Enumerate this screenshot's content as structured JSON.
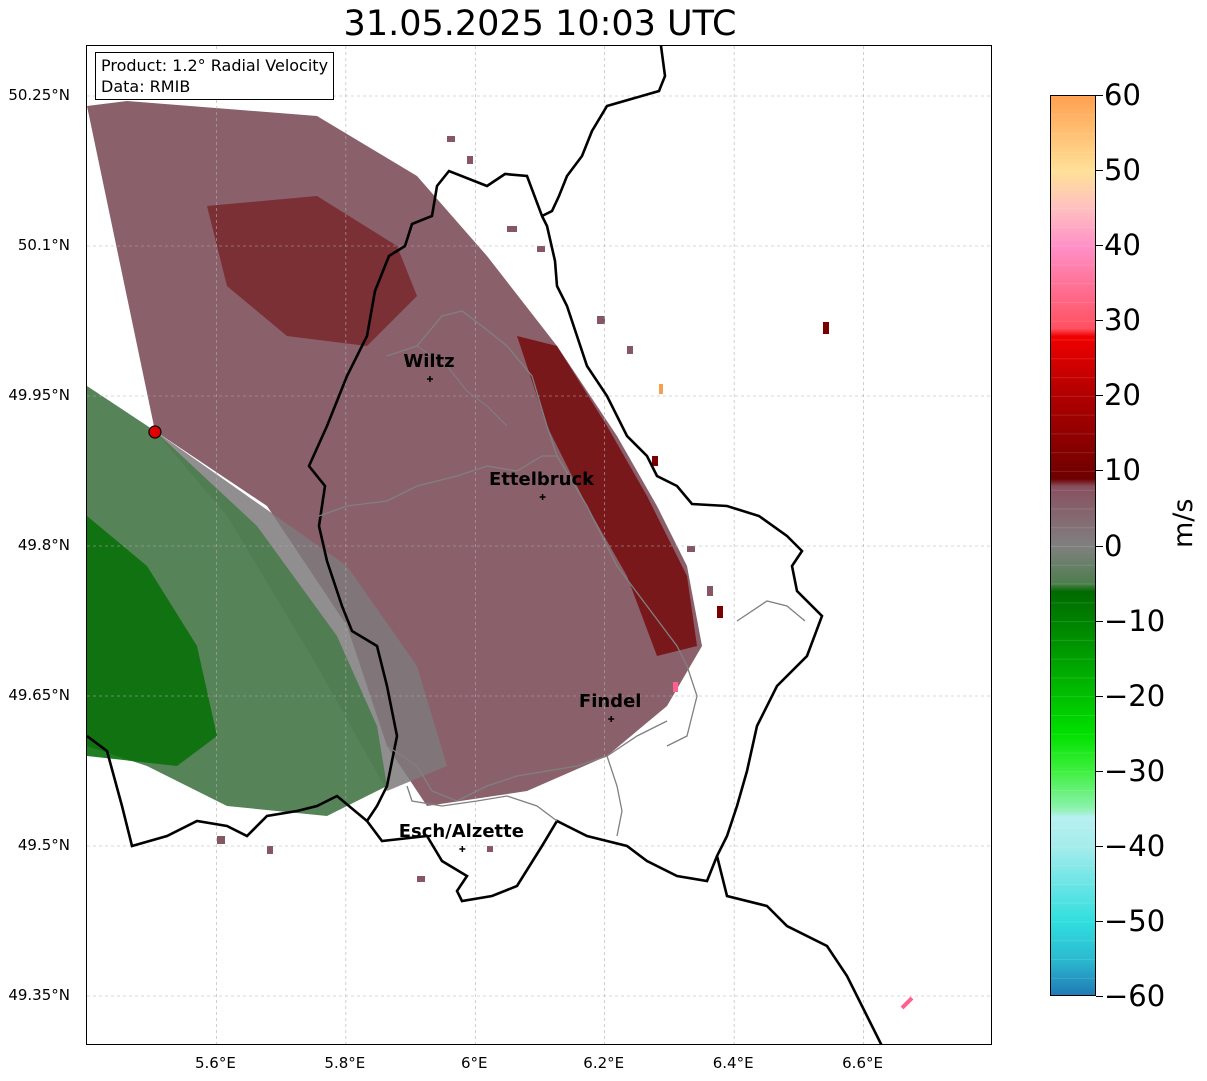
{
  "title": "31.05.2025 10:03 UTC",
  "info_box": {
    "product": "Product: 1.2° Radial Velocity",
    "data": "Data: RMIB"
  },
  "map": {
    "lon_range": [
      5.4,
      6.8
    ],
    "lat_range": [
      49.3,
      50.3
    ],
    "y_ticks": [
      "50.25°N",
      "50.1°N",
      "49.95°N",
      "49.8°N",
      "49.65°N",
      "49.5°N",
      "49.35°N"
    ],
    "x_ticks": [
      "5.6°E",
      "5.8°E",
      "6°E",
      "6.2°E",
      "6.4°E",
      "6.6°E"
    ],
    "grid": true,
    "radar_site": {
      "lon": 5.505,
      "lat": 49.914
    },
    "cities": [
      {
        "name": "Wiltz",
        "lon": 5.93,
        "lat": 49.967
      },
      {
        "name": "Ettelbruck",
        "lon": 6.104,
        "lat": 49.849
      },
      {
        "name": "Findel",
        "lon": 6.21,
        "lat": 49.627
      },
      {
        "name": "Esch/Alzette",
        "lon": 5.98,
        "lat": 49.497
      }
    ]
  },
  "colorbar": {
    "label": "m/s",
    "ticks": [
      "60",
      "50",
      "40",
      "30",
      "20",
      "10",
      "0",
      "−10",
      "−20",
      "−30",
      "−40",
      "−50",
      "−60"
    ],
    "range": [
      -60,
      60
    ],
    "color_stops": [
      {
        "v": -60,
        "c": "#1f77b4"
      },
      {
        "v": -55,
        "c": "#2bbad0"
      },
      {
        "v": -50,
        "c": "#30dede"
      },
      {
        "v": -40,
        "c": "#a6ecec"
      },
      {
        "v": -36,
        "c": "#b8f0f0"
      },
      {
        "v": -35,
        "c": "#8ef2b0"
      },
      {
        "v": -30,
        "c": "#40f040"
      },
      {
        "v": -25,
        "c": "#00e000"
      },
      {
        "v": -15,
        "c": "#00a000"
      },
      {
        "v": -6,
        "c": "#006a00"
      },
      {
        "v": -5,
        "c": "#4e7e4e"
      },
      {
        "v": 0,
        "c": "#808080"
      },
      {
        "v": 8,
        "c": "#885060"
      },
      {
        "v": 9,
        "c": "#6e0000"
      },
      {
        "v": 20,
        "c": "#b00000"
      },
      {
        "v": 28,
        "c": "#f00000"
      },
      {
        "v": 29,
        "c": "#ff5060"
      },
      {
        "v": 40,
        "c": "#ff90c8"
      },
      {
        "v": 45,
        "c": "#ffc0c0"
      },
      {
        "v": 50,
        "c": "#ffe098"
      },
      {
        "v": 60,
        "c": "#ffa050"
      }
    ]
  },
  "colors": {
    "inbound_green": "#2e7d32",
    "outbound_red": "#7a0000",
    "mid_gray": "#7a6a72",
    "border": "#000000",
    "district": "#808080"
  }
}
